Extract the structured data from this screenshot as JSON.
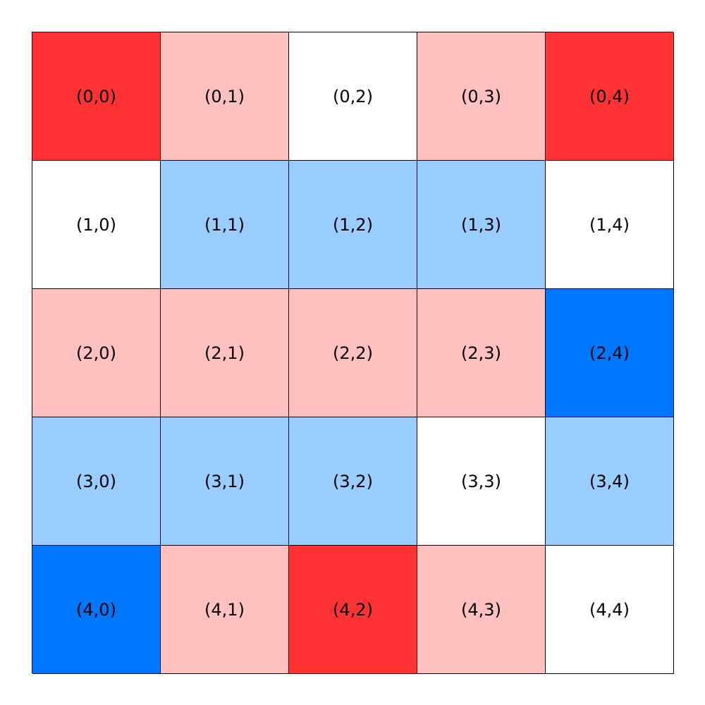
{
  "palette": {
    "strong-red": "#ff3333",
    "light-red": "#ffc0c0",
    "white": "#ffffff",
    "light-blue": "#99ccff",
    "strong-blue": "#0077ff"
  },
  "grid": {
    "rows": 5,
    "cols": 5,
    "cells": [
      {
        "label": "(0,0)",
        "color": "strong-red"
      },
      {
        "label": "(0,1)",
        "color": "light-red"
      },
      {
        "label": "(0,2)",
        "color": "white"
      },
      {
        "label": "(0,3)",
        "color": "light-red"
      },
      {
        "label": "(0,4)",
        "color": "strong-red"
      },
      {
        "label": "(1,0)",
        "color": "white"
      },
      {
        "label": "(1,1)",
        "color": "light-blue"
      },
      {
        "label": "(1,2)",
        "color": "light-blue"
      },
      {
        "label": "(1,3)",
        "color": "light-blue"
      },
      {
        "label": "(1,4)",
        "color": "white"
      },
      {
        "label": "(2,0)",
        "color": "light-red"
      },
      {
        "label": "(2,1)",
        "color": "light-red"
      },
      {
        "label": "(2,2)",
        "color": "light-red"
      },
      {
        "label": "(2,3)",
        "color": "light-red"
      },
      {
        "label": "(2,4)",
        "color": "strong-blue"
      },
      {
        "label": "(3,0)",
        "color": "light-blue"
      },
      {
        "label": "(3,1)",
        "color": "light-blue"
      },
      {
        "label": "(3,2)",
        "color": "light-blue"
      },
      {
        "label": "(3,3)",
        "color": "white"
      },
      {
        "label": "(3,4)",
        "color": "light-blue"
      },
      {
        "label": "(4,0)",
        "color": "strong-blue"
      },
      {
        "label": "(4,1)",
        "color": "light-red"
      },
      {
        "label": "(4,2)",
        "color": "strong-red"
      },
      {
        "label": "(4,3)",
        "color": "light-red"
      },
      {
        "label": "(4,4)",
        "color": "white"
      }
    ]
  }
}
